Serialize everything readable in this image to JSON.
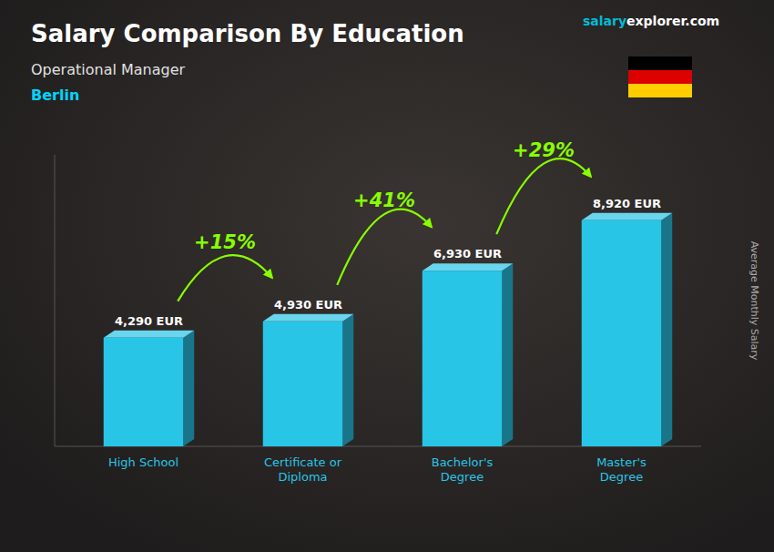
{
  "chart_data": {
    "type": "bar",
    "title": "Salary Comparison By Education",
    "subtitle": "Operational Manager",
    "annotations": [
      "Berlin",
      "salary",
      "explorer",
      ".com",
      "+15%",
      "+41%",
      "+29%"
    ],
    "ylabel": "Average Monthly Salary",
    "categories": [
      "High School",
      "Certificate or\nDiploma",
      "Bachelor's\nDegree",
      "Master's\nDegree"
    ],
    "values": [
      4290,
      4930,
      6930,
      8920
    ],
    "value_labels": [
      "4,290 EUR",
      "4,930 EUR",
      "6,930 EUR",
      "8,920 EUR"
    ],
    "data_labels": true,
    "color": "#29c5e6",
    "ylim": [
      0,
      11500
    ],
    "tick_labels": "x",
    "grid": false
  }
}
